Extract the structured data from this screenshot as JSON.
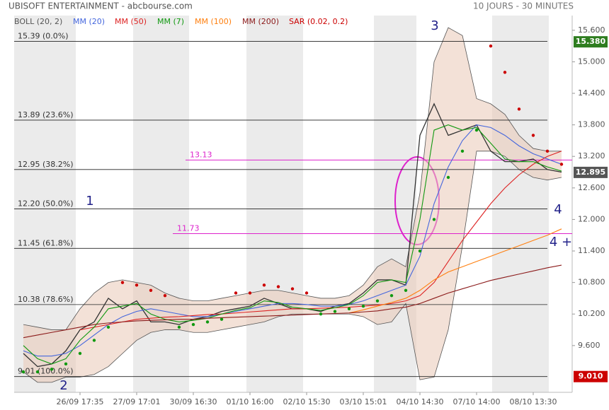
{
  "chart_data": {
    "type": "stock",
    "title": "UBISOFT ENTERTAINMENT - abcbourse.com",
    "subtitle": "10 JOURS - 30 MINUTES",
    "categories": [
      null,
      null,
      null,
      null,
      "26/09 17:35",
      null,
      null,
      null,
      "27/09 17:01",
      null,
      null,
      null,
      "30/09 16:30",
      null,
      null,
      null,
      "01/10 16:00",
      null,
      null,
      null,
      "02/10 15:30",
      null,
      null,
      null,
      "03/10 15:01",
      null,
      null,
      null,
      "04/10 14:30",
      null,
      null,
      null,
      "07/10 14:00",
      null,
      null,
      null,
      "08/10 13:30",
      null,
      null
    ],
    "ylim": [
      8.71,
      15.88
    ],
    "yticks": [
      {
        "value": 9.6,
        "label": "9.600"
      },
      {
        "value": 10.2,
        "label": "10.200"
      },
      {
        "value": 10.8,
        "label": "10.800"
      },
      {
        "value": 11.4,
        "label": "11.400"
      },
      {
        "value": 12.0,
        "label": "12.000"
      },
      {
        "value": 12.6,
        "label": "12.600"
      },
      {
        "value": 13.2,
        "label": "13.200"
      },
      {
        "value": 13.8,
        "label": "13.800"
      },
      {
        "value": 14.4,
        "label": "14.400"
      },
      {
        "value": 15.0,
        "label": "15.000"
      },
      {
        "value": 15.6,
        "label": "15.600"
      }
    ],
    "close": {
      "color": "#333333",
      "values": [
        9.45,
        9.2,
        9.25,
        9.5,
        9.9,
        10.05,
        10.5,
        10.3,
        10.45,
        10.05,
        10.05,
        10.0,
        10.1,
        10.15,
        10.25,
        10.3,
        10.35,
        10.5,
        10.4,
        10.3,
        10.3,
        10.25,
        10.35,
        10.4,
        10.6,
        10.85,
        10.85,
        10.75,
        13.6,
        14.2,
        13.6,
        13.7,
        13.8,
        13.3,
        13.1,
        13.1,
        13.15,
        12.95,
        12.9
      ]
    },
    "bollinger": {
      "name": "BOLL (20, 2)",
      "color": "#555555",
      "fill": "#e9c8b6",
      "upper": [
        10.0,
        9.95,
        9.9,
        9.9,
        10.3,
        10.6,
        10.8,
        10.85,
        10.8,
        10.75,
        10.6,
        10.5,
        10.45,
        10.45,
        10.5,
        10.55,
        10.6,
        10.65,
        10.65,
        10.6,
        10.55,
        10.5,
        10.5,
        10.55,
        10.75,
        11.1,
        11.25,
        11.1,
        12.5,
        15.0,
        15.65,
        15.5,
        14.3,
        14.2,
        14.0,
        13.6,
        13.35,
        13.3,
        13.3
      ],
      "lower": [
        9.1,
        8.9,
        8.9,
        9.0,
        9.0,
        9.05,
        9.2,
        9.45,
        9.7,
        9.85,
        9.9,
        9.9,
        9.85,
        9.85,
        9.9,
        9.95,
        10.0,
        10.05,
        10.15,
        10.2,
        10.2,
        10.2,
        10.2,
        10.2,
        10.15,
        10.0,
        10.05,
        10.4,
        8.95,
        9.0,
        9.9,
        11.5,
        13.3,
        13.3,
        13.2,
        12.95,
        12.8,
        12.75,
        12.8
      ]
    },
    "series": [
      {
        "name": "MM (20)",
        "color": "#4466dd",
        "values": [
          9.5,
          9.4,
          9.4,
          9.45,
          9.6,
          9.8,
          10.0,
          10.15,
          10.25,
          10.3,
          10.25,
          10.2,
          10.15,
          10.15,
          10.2,
          10.25,
          10.3,
          10.35,
          10.4,
          10.4,
          10.38,
          10.35,
          10.35,
          10.38,
          10.45,
          10.55,
          10.65,
          10.75,
          11.3,
          12.3,
          13.0,
          13.5,
          13.8,
          13.75,
          13.6,
          13.4,
          13.25,
          13.15,
          13.05
        ]
      },
      {
        "name": "MM (50)",
        "color": "#dd2222",
        "values": [
          null,
          null,
          null,
          null,
          9.9,
          9.95,
          10.0,
          10.05,
          10.1,
          10.12,
          10.14,
          10.15,
          10.17,
          10.19,
          10.2,
          10.22,
          10.24,
          10.26,
          10.28,
          10.3,
          10.3,
          10.31,
          10.32,
          10.33,
          10.35,
          10.37,
          10.4,
          10.45,
          10.55,
          10.8,
          11.2,
          11.6,
          11.95,
          12.3,
          12.6,
          12.85,
          13.05,
          13.2,
          13.3
        ]
      },
      {
        "name": "MM (7)",
        "color": "#119911",
        "values": [
          9.6,
          9.35,
          9.25,
          9.35,
          9.7,
          9.95,
          10.3,
          10.35,
          10.4,
          10.2,
          10.1,
          10.05,
          10.08,
          10.12,
          10.2,
          10.27,
          10.32,
          10.45,
          10.42,
          10.33,
          10.3,
          10.27,
          10.32,
          10.38,
          10.55,
          10.8,
          10.85,
          10.8,
          12.0,
          13.7,
          13.8,
          13.7,
          13.75,
          13.45,
          13.15,
          13.1,
          13.1,
          13.0,
          12.92
        ]
      },
      {
        "name": "MM (100)",
        "color": "#ff7f0e",
        "values": [
          null,
          null,
          null,
          null,
          null,
          null,
          null,
          null,
          null,
          null,
          null,
          null,
          null,
          null,
          null,
          null,
          null,
          null,
          null,
          null,
          null,
          null,
          null,
          10.22,
          10.28,
          10.35,
          10.42,
          10.5,
          10.65,
          10.85,
          11.0,
          11.1,
          11.2,
          11.3,
          11.4,
          11.5,
          11.6,
          11.7,
          11.82
        ]
      },
      {
        "name": "MM (200)",
        "color": "#8b1a1a",
        "values": [
          9.75,
          9.8,
          9.85,
          9.9,
          9.95,
          10.0,
          10.03,
          10.05,
          10.07,
          10.08,
          10.09,
          10.1,
          10.1,
          10.12,
          10.13,
          10.14,
          10.15,
          10.16,
          10.17,
          10.18,
          10.19,
          10.2,
          10.21,
          10.22,
          10.24,
          10.26,
          10.3,
          10.33,
          10.4,
          10.5,
          10.6,
          10.68,
          10.76,
          10.84,
          10.9,
          10.96,
          11.02,
          11.08,
          11.13
        ]
      },
      {
        "name": "SAR (0.02, 0.2)",
        "type": "dots",
        "color": "#cc0000",
        "color_below": "#119911",
        "values": [
          9.1,
          9.1,
          9.15,
          9.25,
          9.45,
          9.7,
          9.95,
          10.8,
          10.75,
          10.65,
          10.55,
          9.95,
          10.0,
          10.05,
          10.1,
          10.6,
          10.6,
          10.75,
          10.72,
          10.68,
          10.6,
          10.2,
          10.25,
          10.3,
          10.35,
          10.45,
          10.55,
          10.65,
          11.4,
          12.0,
          12.8,
          13.3,
          13.7,
          15.3,
          14.8,
          14.1,
          13.6,
          13.3,
          13.05
        ]
      }
    ],
    "fibonacci": [
      {
        "value": 15.39,
        "label": "15.39 (0.0%)"
      },
      {
        "value": 13.89,
        "label": "13.89 (23.6%)"
      },
      {
        "value": 12.95,
        "label": "12.95 (38.2%)"
      },
      {
        "value": 12.2,
        "label": "12.20 (50.0%)"
      },
      {
        "value": 11.45,
        "label": "11.45 (61.8%)"
      },
      {
        "value": 10.38,
        "label": "10.38 (78.6%)"
      },
      {
        "value": 9.01,
        "label": "9.01 (100.0%)"
      }
    ],
    "levels": [
      13.13,
      11.73
    ],
    "level_color": "#dd22cc",
    "price_tags": [
      {
        "value": 15.38,
        "label": "15.380",
        "color": "#2e7d1f"
      },
      {
        "value": 12.895,
        "label": "12.895",
        "color": "#555555"
      },
      {
        "value": 9.01,
        "label": "9.010",
        "color": "#cc0000"
      }
    ],
    "annotations": [
      "1",
      "2",
      "3",
      "4",
      "4 +"
    ]
  }
}
